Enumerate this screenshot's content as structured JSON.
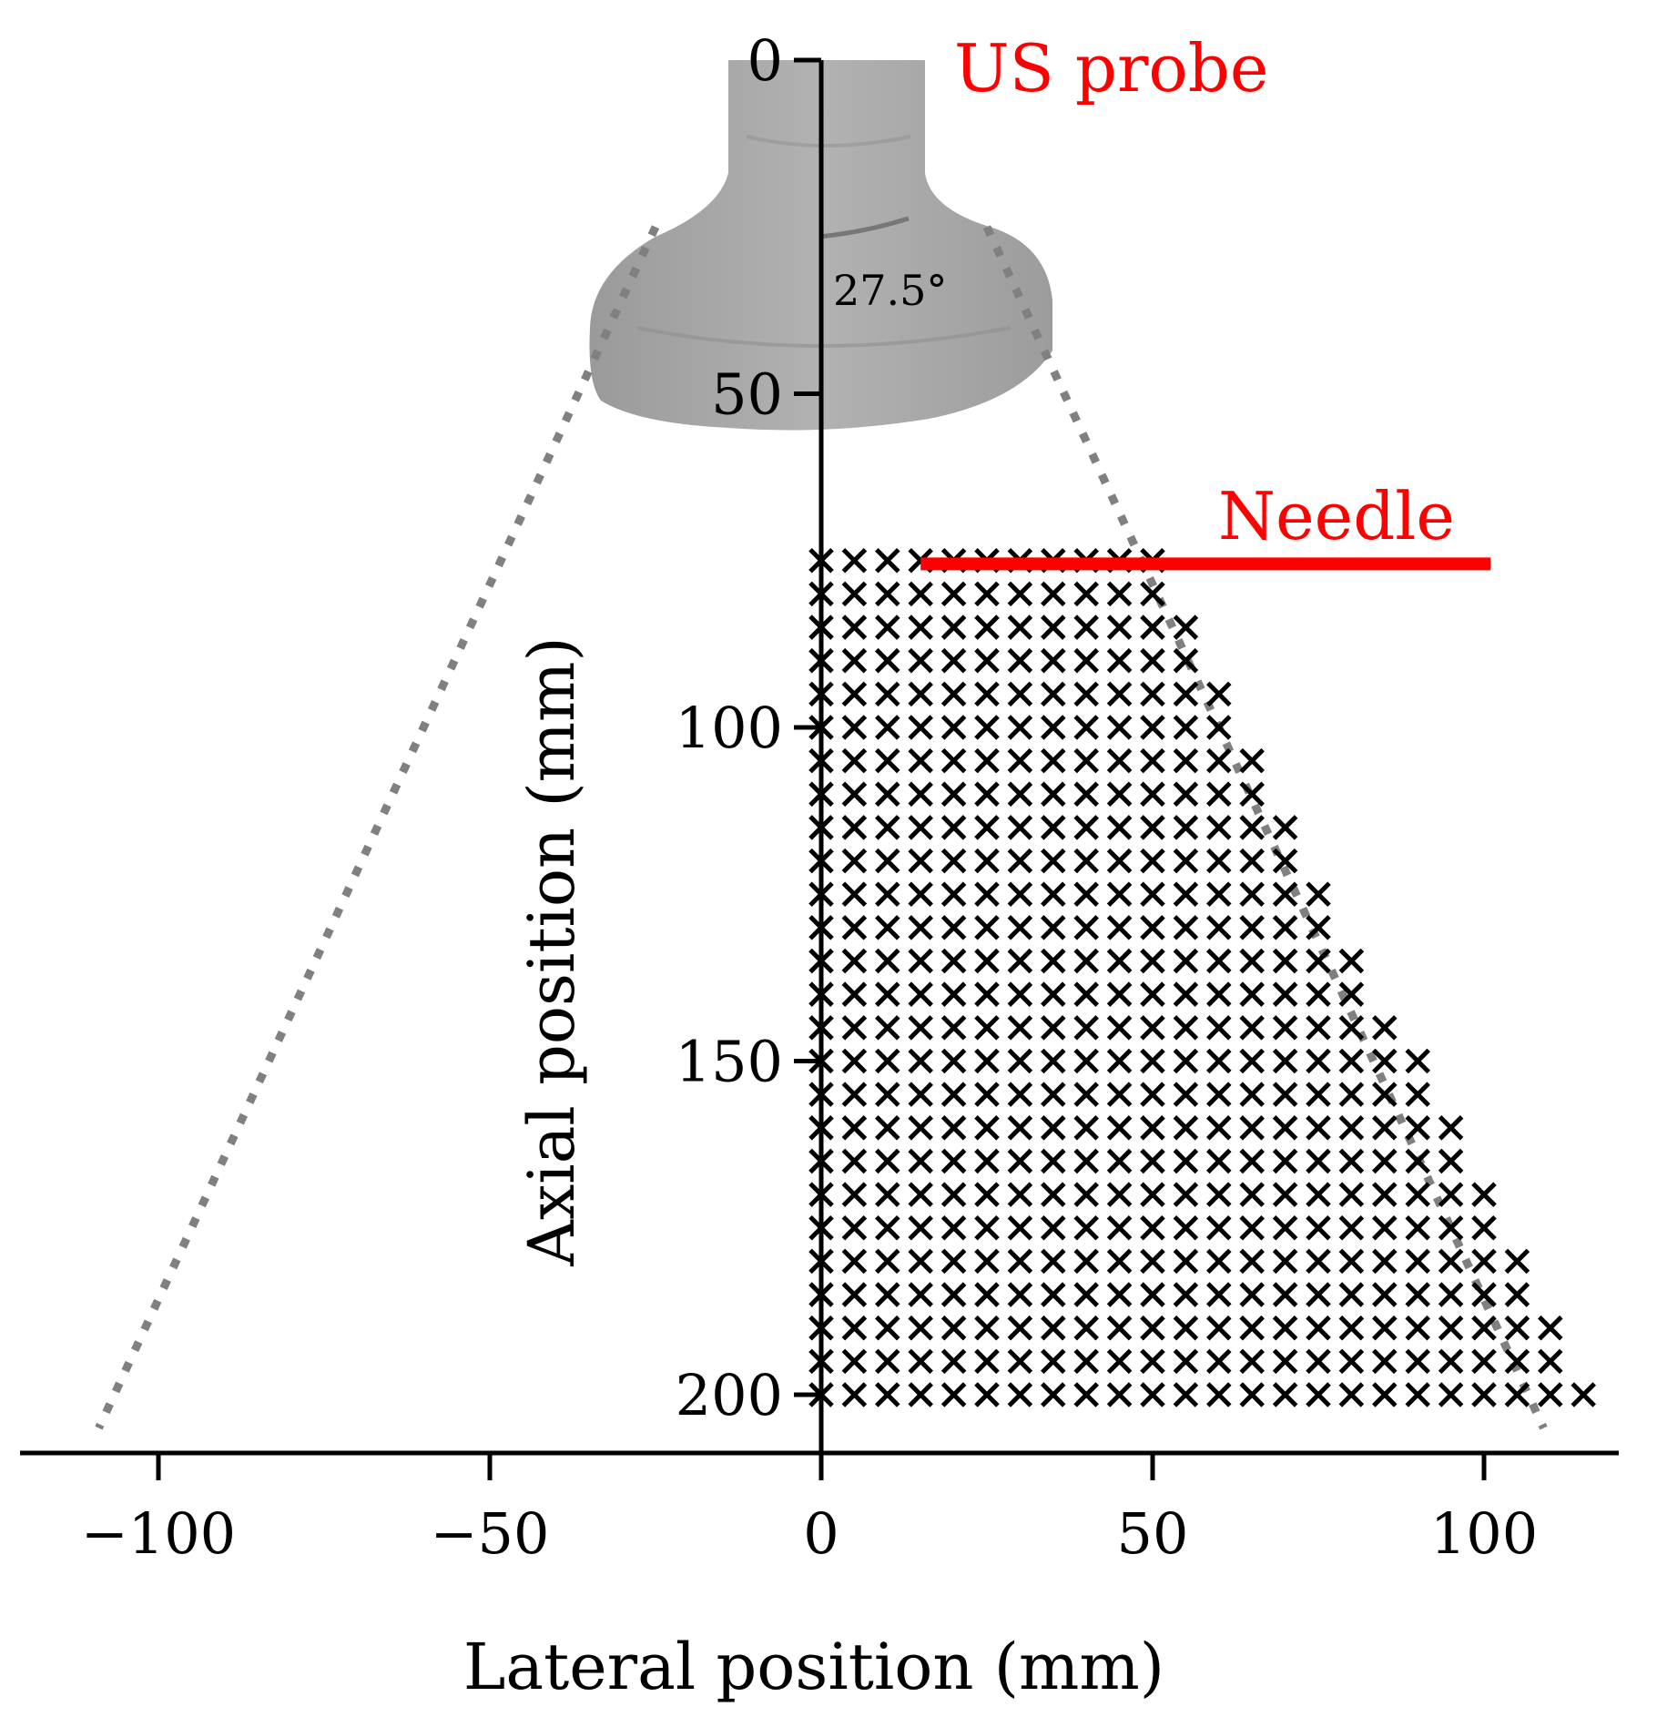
{
  "chart_data": {
    "type": "scatter",
    "title": "",
    "xlabel": "Lateral position (mm)",
    "ylabel": "Axial position (mm)",
    "xlim": [
      -120,
      121
    ],
    "ylim": [
      210,
      0
    ],
    "x_ticks": [
      -100,
      -50,
      0,
      50,
      100
    ],
    "y_ticks": [
      0,
      50,
      100,
      150,
      200
    ],
    "grid": false,
    "marker": "x",
    "colors": {
      "points": "#000000",
      "annotation": "#ff0000",
      "field_of_view": "#808080",
      "probe": "#a6a6a6"
    },
    "point_grid": {
      "x_start": 0,
      "x_step": 5,
      "y_start": 75,
      "y_end": 200,
      "y_step": 5,
      "boundary": "x <= (y + 23) * tan(27.5°)"
    },
    "field_of_view": {
      "half_angle_deg": 27.5,
      "apex": [
        0,
        -23
      ],
      "lines": [
        {
          "x": [
            -25,
            -109
          ],
          "y": [
            25,
            205
          ]
        },
        {
          "x": [
            25,
            109
          ],
          "y": [
            25,
            205
          ]
        }
      ]
    },
    "annotations": [
      {
        "text": "US probe",
        "x": 20,
        "y": 0
      },
      {
        "text": "Needle",
        "x": 60,
        "y": 69
      },
      {
        "text": "27.5°",
        "x": 1,
        "y": 36
      }
    ],
    "needle_line": {
      "x": [
        15,
        101
      ],
      "y": [
        75.5,
        75.5
      ]
    },
    "probe_icon": "ultrasound-probe-icon"
  }
}
